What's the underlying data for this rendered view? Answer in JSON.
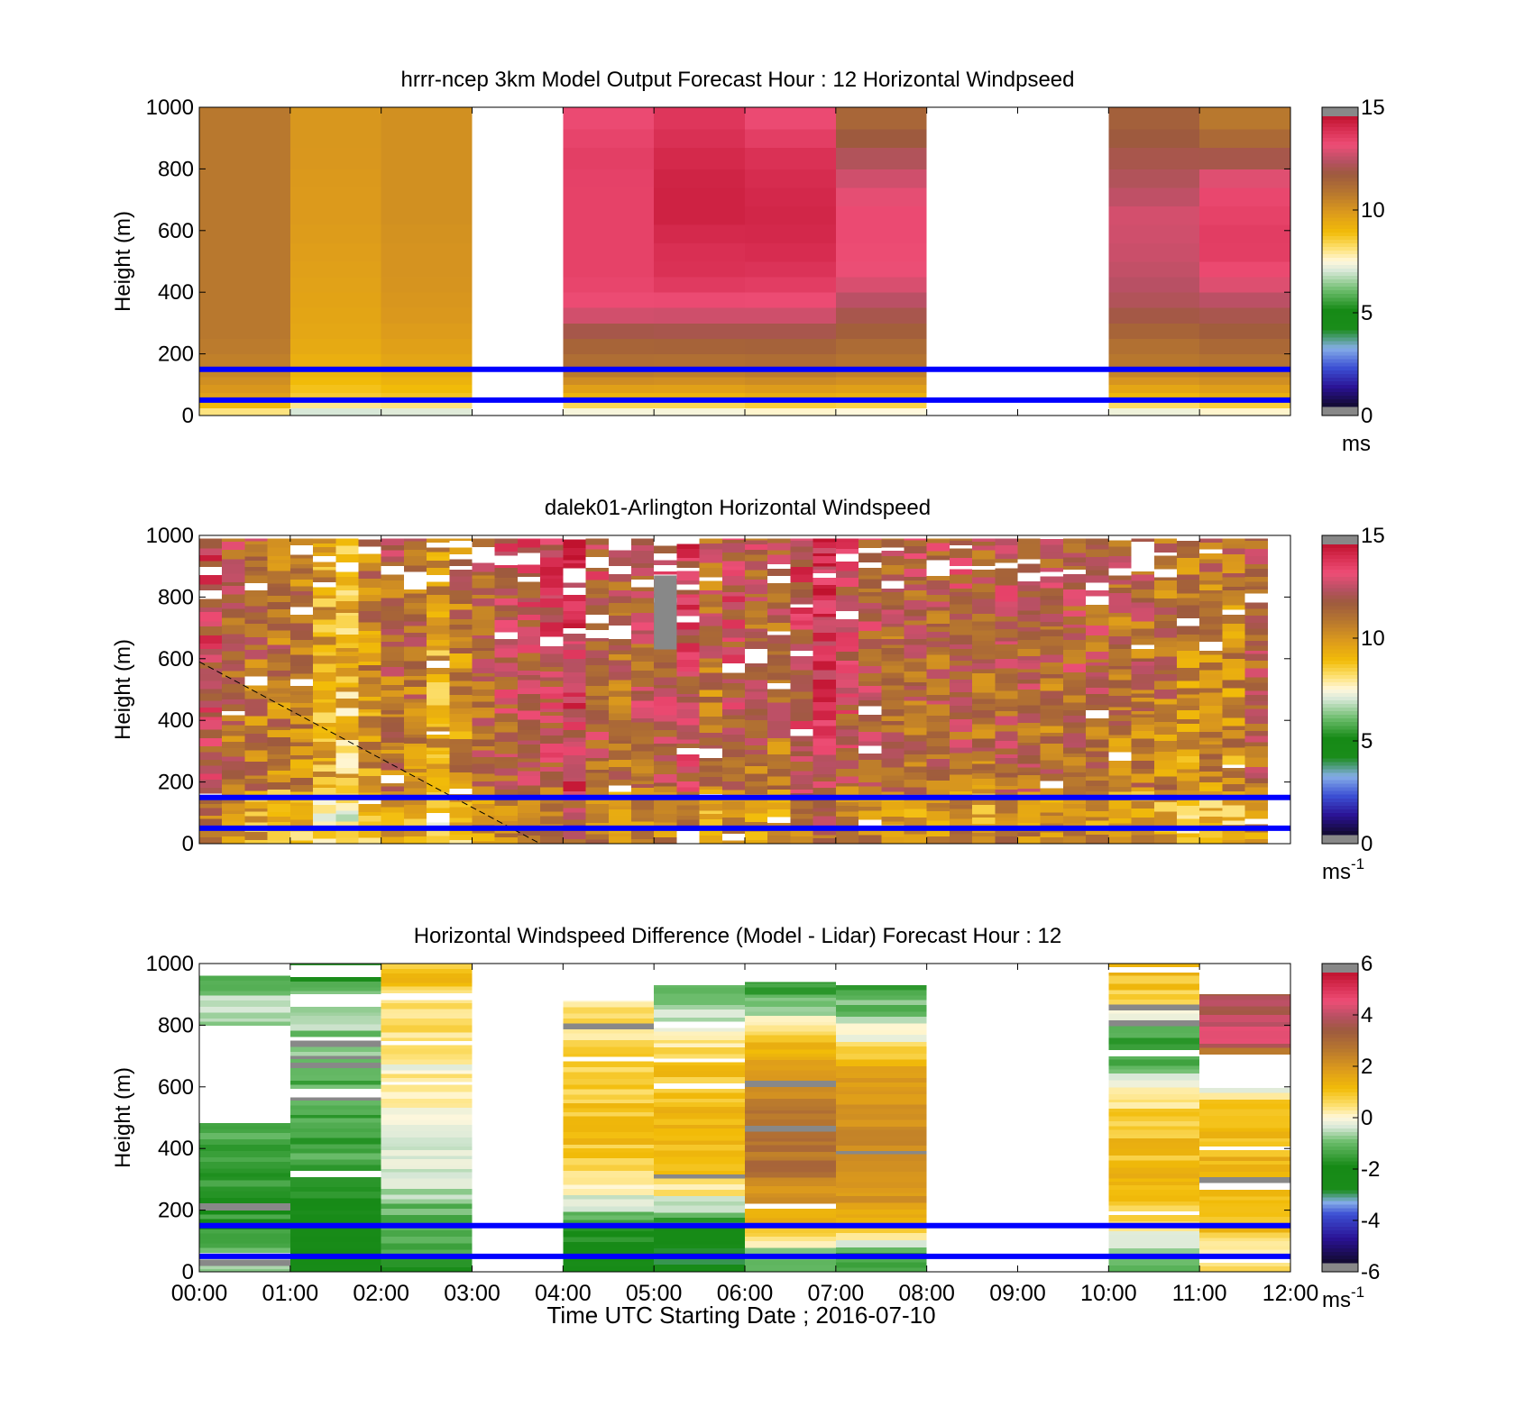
{
  "chart_data": [
    {
      "type": "heatmap",
      "title": "hrrr-ncep 3km Model Output   Forecast Hour : 12 Horizontal Windpseed",
      "ylabel": "Height (m)",
      "ylim": [
        0,
        1000
      ],
      "yticks": [
        "0",
        "200",
        "400",
        "600",
        "800",
        "1000"
      ],
      "xlim": [
        "00:00",
        "12:00"
      ],
      "colorbar": {
        "ticks": [
          "0",
          "5",
          "10",
          "15"
        ],
        "min": 0,
        "max": 15,
        "unit": "ms",
        "unit_exp": ""
      },
      "reference_lines_m": [
        150,
        50
      ],
      "columns": [
        {
          "start": "00:00",
          "end": "01:00",
          "speeds": [
            9.7,
            10.7,
            11.0,
            11.0,
            11.0,
            11.0,
            11.0,
            11.0,
            11.0,
            11.0
          ]
        },
        {
          "start": "01:00",
          "end": "02:00",
          "speeds": [
            8.6,
            9.3,
            9.6,
            9.7,
            9.8,
            9.9,
            10.0,
            10.0,
            10.1,
            10.1
          ]
        },
        {
          "start": "02:00",
          "end": "03:00",
          "speeds": [
            8.7,
            9.6,
            9.9,
            10.1,
            10.2,
            10.2,
            10.3,
            10.3,
            10.3,
            10.3
          ]
        },
        {
          "start": "04:00",
          "end": "05:00",
          "speeds": [
            9.0,
            11.2,
            11.8,
            13.5,
            13.8,
            13.8,
            13.8,
            13.8,
            13.9,
            13.6
          ]
        },
        {
          "start": "05:00",
          "end": "06:00",
          "speeds": [
            9.0,
            11.1,
            11.9,
            13.4,
            14.2,
            14.3,
            14.6,
            14.6,
            14.4,
            14.1
          ]
        },
        {
          "start": "06:00",
          "end": "07:00",
          "speeds": [
            9.2,
            11.2,
            11.9,
            13.4,
            14.1,
            14.4,
            14.5,
            14.4,
            14.2,
            13.6
          ]
        },
        {
          "start": "07:00",
          "end": "08:00",
          "speeds": [
            9.1,
            11.0,
            11.6,
            12.5,
            13.4,
            13.6,
            13.6,
            13.2,
            12.4,
            11.6
          ]
        },
        {
          "start": "10:00",
          "end": "11:00",
          "speeds": [
            8.9,
            10.9,
            11.4,
            12.4,
            12.8,
            13.0,
            13.1,
            12.6,
            12.2,
            11.8
          ]
        },
        {
          "start": "11:00",
          "end": "12:00",
          "speeds": [
            9.2,
            11.0,
            11.7,
            12.5,
            13.5,
            14.0,
            13.8,
            13.6,
            12.0,
            11.0
          ]
        }
      ]
    },
    {
      "type": "heatmap",
      "title": "dalek01-Arlington  Horizontal Windspeed",
      "ylabel": "Height (m)",
      "ylim": [
        0,
        1000
      ],
      "yticks": [
        "0",
        "200",
        "400",
        "600",
        "800",
        "1000"
      ],
      "xlim": [
        "00:00",
        "12:00"
      ],
      "colorbar": {
        "ticks": [
          "0",
          "5",
          "10",
          "15"
        ],
        "min": 0,
        "max": 15,
        "unit": "ms",
        "unit_exp": "-1"
      },
      "reference_lines_m": [
        150,
        50
      ],
      "column_means_ms": [
        12.8,
        11.6,
        11.2,
        11.0,
        10.8,
        9.6,
        9.2,
        10.4,
        11.3,
        11.2,
        9.8,
        10.6,
        11.6,
        12.2,
        12.4,
        12.8,
        13.6,
        12.2,
        11.6,
        12.0,
        12.4,
        12.9,
        11.2,
        12.5,
        11.6,
        11.5,
        12.8,
        13.5,
        12.6,
        12.0,
        11.4,
        11.6,
        11.6,
        11.9,
        11.2,
        12.0,
        11.9,
        11.5,
        12.0,
        11.6,
        11.2,
        11.3,
        11.0,
        10.5,
        10.8,
        10.6,
        11.8
      ],
      "missing_value_block": {
        "start": "05:00",
        "end": "05:15",
        "bottom_m": 630,
        "top_m": 870
      },
      "dashed_line": {
        "x": [
          "00:00",
          "03:45"
        ],
        "y_m": [
          590,
          0
        ]
      }
    },
    {
      "type": "heatmap",
      "title": "Horizontal Windspeed Difference (Model - Lidar) Forecast Hour : 12",
      "xlabel": "Time UTC  Starting Date ; 2016-07-10",
      "ylabel": "Height (m)",
      "ylim": [
        0,
        1000
      ],
      "yticks": [
        "0",
        "200",
        "400",
        "600",
        "800",
        "1000"
      ],
      "xticks": [
        "00:00",
        "01:00",
        "02:00",
        "03:00",
        "04:00",
        "05:00",
        "06:00",
        "07:00",
        "08:00",
        "09:00",
        "10:00",
        "11:00",
        "12:00"
      ],
      "xlim": [
        "00:00",
        "12:00"
      ],
      "colorbar": {
        "ticks": [
          "-6",
          "-4",
          "-2",
          "0",
          "2",
          "4",
          "6"
        ],
        "min": -6,
        "max": 6,
        "unit": "ms",
        "unit_exp": "-1"
      },
      "reference_lines_m": [
        150,
        50
      ],
      "columns": [
        {
          "start": "00:00",
          "end": "01:00",
          "diffs": [
            -0.6,
            -1.9,
            -1.6,
            -1.4,
            -1.4,
            -1.1,
            -0.7,
            -0.7,
            -0.7,
            -1.0
          ],
          "top_m": 960,
          "gap_m": [
            480,
            800
          ]
        },
        {
          "start": "01:00",
          "end": "02:00",
          "diffs": [
            -2.6,
            -2.4,
            -1.9,
            -1.5,
            -1.4,
            -1.3,
            -1.2,
            -1.0,
            -0.8,
            -1.7
          ],
          "top_m": 1000,
          "gap_m": [
            860,
            900
          ]
        },
        {
          "start": "02:00",
          "end": "03:00",
          "diffs": [
            -1.6,
            -1.4,
            -0.8,
            -0.4,
            -0.2,
            0.2,
            0.1,
            0.3,
            0.6,
            1.0
          ],
          "top_m": 1000
        },
        {
          "start": "04:00",
          "end": "05:00",
          "diffs": [
            -2.7,
            -1.6,
            -0.2,
            0.8,
            1.1,
            0.9,
            0.7,
            0.6,
            0.3,
            0.3
          ],
          "top_m": 880
        },
        {
          "start": "05:00",
          "end": "06:00",
          "diffs": [
            -2.9,
            -2.0,
            0.2,
            1.1,
            1.1,
            1.2,
            1.0,
            0.3,
            -0.8,
            -1.3
          ],
          "top_m": 930
        },
        {
          "start": "06:00",
          "end": "07:00",
          "diffs": [
            -1.3,
            1.3,
            2.2,
            3.0,
            3.0,
            2.5,
            1.8,
            1.4,
            -1.0,
            -1.6
          ],
          "top_m": 940
        },
        {
          "start": "07:00",
          "end": "08:00",
          "diffs": [
            -1.6,
            1.3,
            2.0,
            2.3,
            2.3,
            2.1,
            1.8,
            0.2,
            -1.0,
            -1.7
          ],
          "top_m": 930
        },
        {
          "start": "10:00",
          "end": "11:00",
          "diffs": [
            -1.2,
            0.4,
            1.1,
            1.2,
            1.1,
            0.6,
            -1.0,
            -1.5,
            0.3,
            1.2
          ],
          "top_m": 1000
        },
        {
          "start": "11:00",
          "end": "12:00",
          "diffs": [
            0.3,
            1.2,
            1.4,
            1.3,
            1.2,
            0.8,
            -1.8,
            4.5,
            4.0,
            3.5
          ],
          "top_m": 900,
          "gap_m": [
            600,
            700
          ]
        }
      ]
    }
  ],
  "colormap": {
    "speed_stops": [
      [
        0,
        "#120a2e"
      ],
      [
        1,
        "#2a1294"
      ],
      [
        2,
        "#3c50d4"
      ],
      [
        3,
        "#86aee8"
      ],
      [
        4,
        "#1a8c1a"
      ],
      [
        5,
        "#168a16"
      ],
      [
        6,
        "#6dbd6d"
      ],
      [
        7,
        "#d8e8d8"
      ],
      [
        7.5,
        "#fff8dc"
      ],
      [
        8.2,
        "#fde070"
      ],
      [
        9,
        "#f2bc08"
      ],
      [
        10,
        "#dc9a1c"
      ],
      [
        11,
        "#b8782e"
      ],
      [
        12,
        "#9e5a3e"
      ],
      [
        12.7,
        "#b85064"
      ],
      [
        13.5,
        "#ee4e76"
      ],
      [
        14.3,
        "#d82e52"
      ],
      [
        15,
        "#c0122e"
      ]
    ],
    "diff_stops": [
      [
        -6,
        "#120a2e"
      ],
      [
        -5,
        "#2a1294"
      ],
      [
        -4,
        "#3c50d4"
      ],
      [
        -3.5,
        "#86aee8"
      ],
      [
        -3,
        "#1a8c1a"
      ],
      [
        -2,
        "#168a16"
      ],
      [
        -1,
        "#6dbd6d"
      ],
      [
        -0.4,
        "#d8e8d8"
      ],
      [
        0,
        "#fff8dc"
      ],
      [
        0.5,
        "#fde070"
      ],
      [
        1.2,
        "#f2bc08"
      ],
      [
        2,
        "#dc9a1c"
      ],
      [
        2.8,
        "#b8782e"
      ],
      [
        3.6,
        "#9e5a3e"
      ],
      [
        4.2,
        "#b85064"
      ],
      [
        4.8,
        "#ee4e76"
      ],
      [
        5.4,
        "#d82e52"
      ],
      [
        6,
        "#c0122e"
      ]
    ],
    "overflow": "#888888",
    "reference_line": "#0000ff"
  }
}
